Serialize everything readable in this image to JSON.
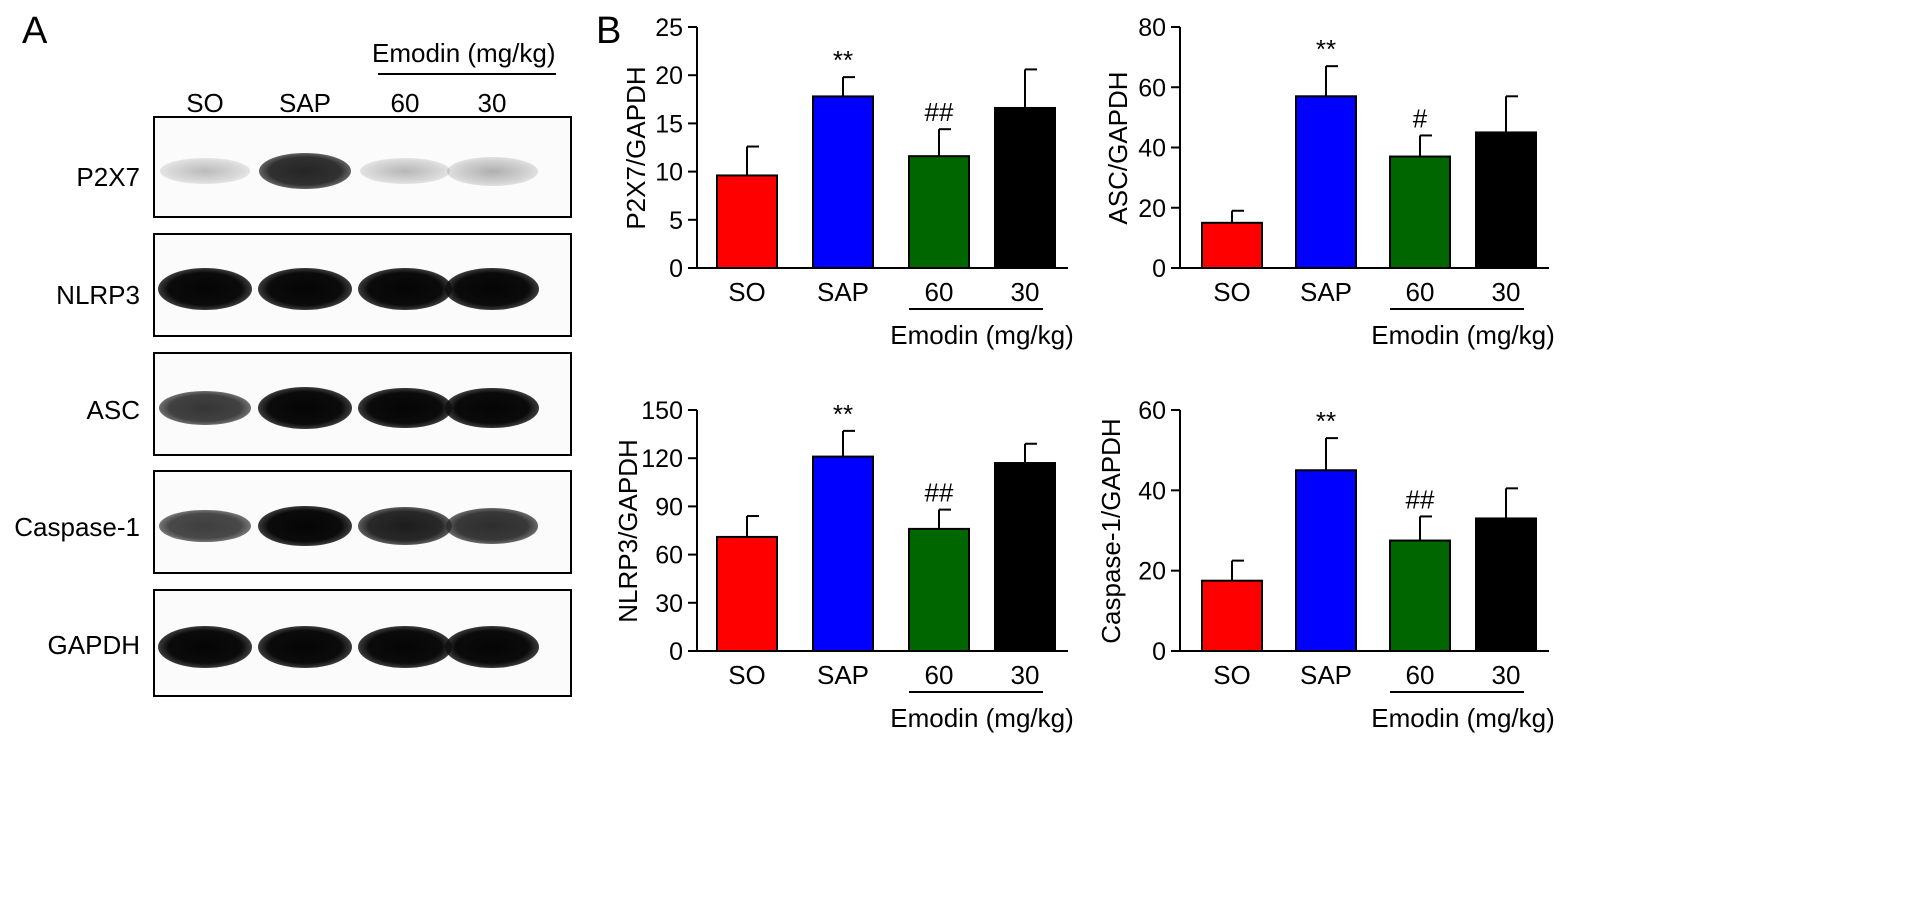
{
  "panel_a": {
    "letter": "A",
    "header": "Emodin (mg/kg)",
    "lanes": [
      "SO",
      "SAP",
      "60",
      "30"
    ],
    "blots": [
      {
        "label": "P2X7",
        "intensity": [
          0.35,
          0.8,
          0.4,
          0.5
        ]
      },
      {
        "label": "NLRP3",
        "intensity": [
          1.0,
          1.0,
          1.0,
          1.0
        ]
      },
      {
        "label": "ASC",
        "intensity": [
          0.7,
          1.0,
          0.95,
          0.95
        ]
      },
      {
        "label": "Caspase-1",
        "intensity": [
          0.65,
          0.95,
          0.85,
          0.75
        ]
      },
      {
        "label": "GAPDH",
        "intensity": [
          1.0,
          1.0,
          1.0,
          1.0
        ]
      }
    ]
  },
  "panel_b": {
    "letter": "B",
    "group_label": "Emodin (mg/kg)"
  },
  "colors": {
    "SO": "#ff0000",
    "SAP": "#0000ff",
    "60": "#006600",
    "30": "#000000"
  },
  "chart_data": [
    {
      "type": "bar",
      "categories": [
        "SO",
        "SAP",
        "60",
        "30"
      ],
      "values": [
        9.6,
        17.8,
        11.6,
        16.6
      ],
      "errors": [
        3.0,
        2.0,
        2.8,
        4.0
      ],
      "annotations": [
        "",
        "**",
        "##",
        ""
      ],
      "ylabel": "P2X7/GAPDH",
      "ylim": [
        0,
        25
      ],
      "yticks": [
        0,
        5,
        10,
        15,
        20,
        25
      ],
      "grid": false
    },
    {
      "type": "bar",
      "categories": [
        "SO",
        "SAP",
        "60",
        "30"
      ],
      "values": [
        15,
        57,
        37,
        45
      ],
      "errors": [
        4,
        10,
        7,
        12
      ],
      "annotations": [
        "",
        "**",
        "#",
        ""
      ],
      "ylabel": "ASC/GAPDH",
      "ylim": [
        0,
        80
      ],
      "yticks": [
        0,
        20,
        40,
        60,
        80
      ],
      "grid": false
    },
    {
      "type": "bar",
      "categories": [
        "SO",
        "SAP",
        "60",
        "30"
      ],
      "values": [
        71,
        121,
        76,
        117
      ],
      "errors": [
        13,
        16,
        12,
        12
      ],
      "annotations": [
        "",
        "**",
        "##",
        ""
      ],
      "ylabel": "NLRP3/GAPDH",
      "ylim": [
        0,
        150
      ],
      "yticks": [
        0,
        30,
        60,
        90,
        120,
        150
      ],
      "grid": false
    },
    {
      "type": "bar",
      "categories": [
        "SO",
        "SAP",
        "60",
        "30"
      ],
      "values": [
        17.5,
        45,
        27.5,
        33
      ],
      "errors": [
        5,
        8,
        6,
        7.5
      ],
      "annotations": [
        "",
        "**",
        "##",
        ""
      ],
      "ylabel": "Caspase-1/GAPDH",
      "ylim": [
        0,
        60
      ],
      "yticks": [
        0,
        20,
        40,
        60
      ],
      "grid": false
    }
  ]
}
